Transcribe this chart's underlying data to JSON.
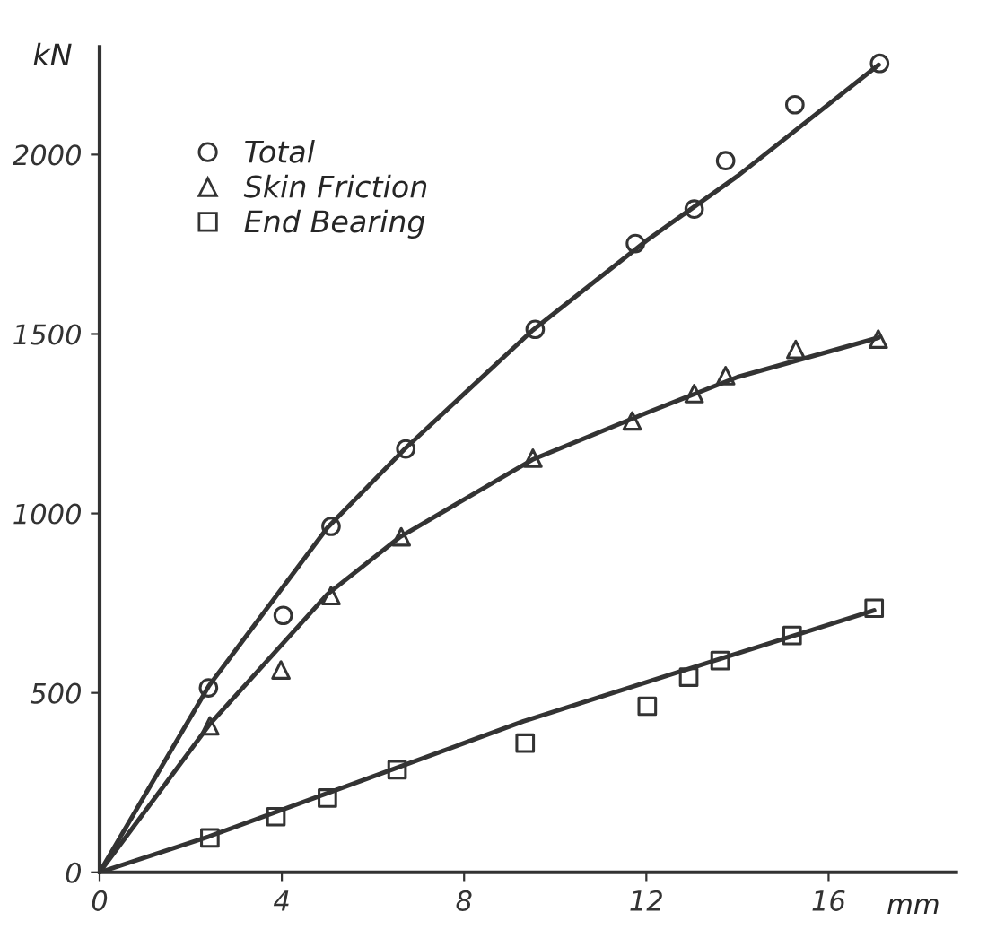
{
  "chart_data": {
    "type": "scatter",
    "xlabel": "mm",
    "ylabel": "kN",
    "xlim": [
      0,
      18.8
    ],
    "ylim": [
      0,
      2300
    ],
    "xticks": [
      0,
      4,
      8,
      12,
      16
    ],
    "yticks": [
      0,
      500,
      1000,
      1500,
      2000
    ],
    "grid": false,
    "legend": "top left",
    "series": [
      {
        "name": "Total",
        "marker": "circle",
        "color": "#333333",
        "x": [
          2.39,
          4.03,
          5.08,
          6.72,
          9.56,
          11.76,
          13.05,
          13.74,
          15.26,
          17.12
        ],
        "values": [
          514,
          716,
          964,
          1180,
          1513,
          1752,
          1848,
          1983,
          2139,
          2254
        ]
      },
      {
        "name": "Skin Friction",
        "marker": "triangle",
        "color": "#333333",
        "x": [
          2.42,
          3.98,
          5.08,
          6.62,
          9.51,
          11.69,
          13.05,
          13.74,
          15.28,
          17.09
        ],
        "values": [
          408,
          564,
          771,
          935,
          1154,
          1258,
          1334,
          1384,
          1457,
          1486
        ]
      },
      {
        "name": "End Bearing",
        "marker": "square",
        "color": "#333333",
        "x": [
          2.42,
          3.87,
          5.0,
          6.53,
          9.34,
          12.02,
          12.93,
          13.62,
          15.2,
          17.0
        ],
        "values": [
          96,
          155,
          207,
          286,
          360,
          463,
          544,
          590,
          660,
          736
        ]
      },
      {
        "type": "line",
        "line_style": "solid",
        "color": "#333333",
        "x": [
          0,
          2.4,
          5.0,
          6.7,
          9.5,
          12,
          14,
          17.1
        ],
        "values": [
          0,
          520,
          960,
          1180,
          1510,
          1760,
          1940,
          2250
        ]
      },
      {
        "type": "line",
        "line_style": "solid",
        "color": "#333333",
        "x": [
          0,
          2.4,
          5.0,
          6.6,
          9.5,
          12,
          14,
          17.1
        ],
        "values": [
          0,
          410,
          775,
          935,
          1150,
          1280,
          1380,
          1490
        ]
      },
      {
        "type": "line",
        "line_style": "solid",
        "color": "#333333",
        "x": [
          0,
          2.4,
          6.5,
          9.3,
          13.5,
          17
        ],
        "values": [
          0,
          100,
          290,
          421,
          590,
          730
        ]
      }
    ]
  }
}
